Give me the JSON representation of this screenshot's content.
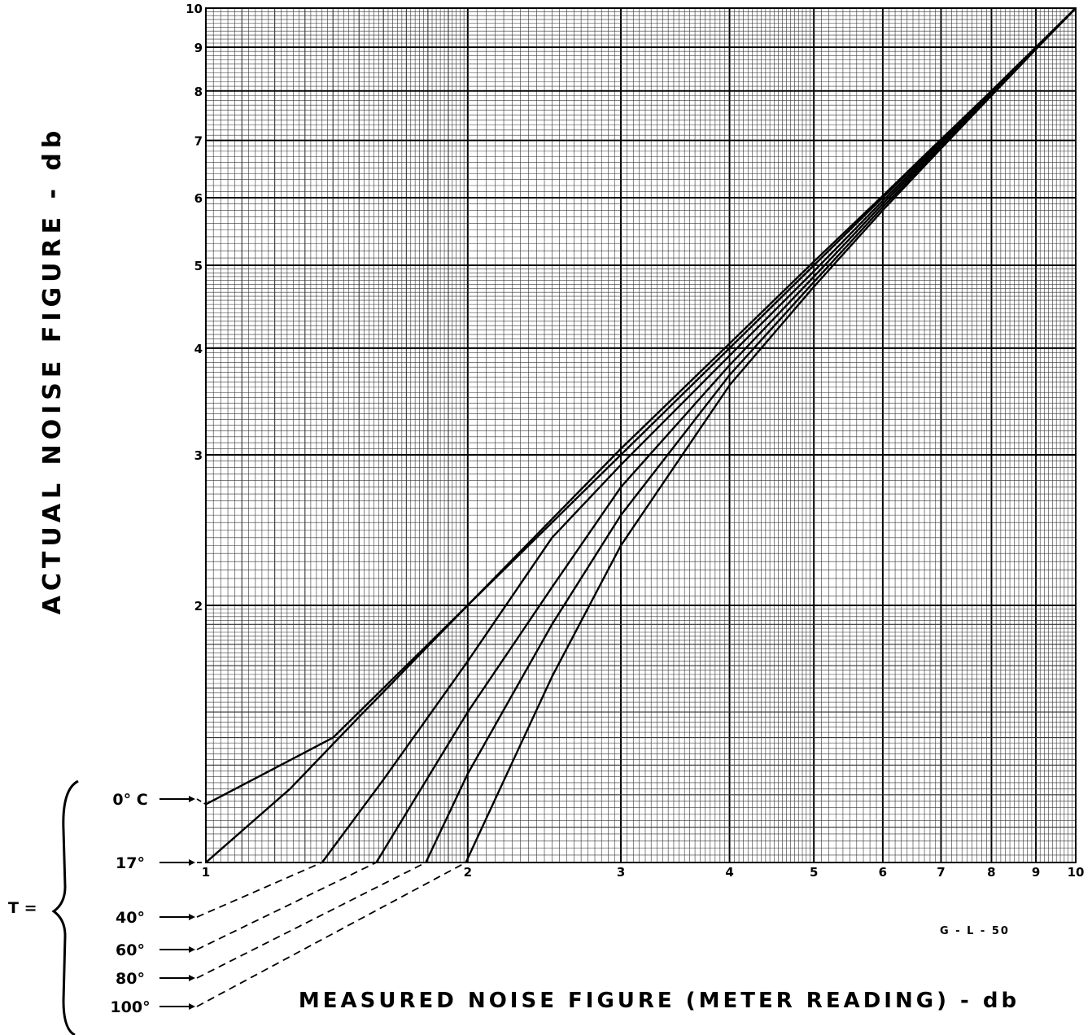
{
  "chart_data": {
    "type": "line",
    "title": "",
    "xlabel": "MEASURED  NOISE  FIGURE  (METER  READING) - db",
    "ylabel": "ACTUAL  NOISE  FIGURE - db",
    "x_scale": "log",
    "y_scale": "log",
    "xlim": [
      1,
      10
    ],
    "ylim": [
      1,
      10
    ],
    "grid": true,
    "x_ticks": [
      "1",
      "2",
      "3",
      "4",
      "5",
      "6",
      "7",
      "8",
      "9",
      "10"
    ],
    "y_ticks": [
      "2",
      "3",
      "4",
      "5",
      "6",
      "7",
      "8",
      "9",
      "10"
    ],
    "temperature_label": "T =",
    "series": [
      {
        "name": "0° C",
        "extends_below_axis": false,
        "x": [
          1,
          1.4,
          2,
          3,
          4,
          5,
          6,
          7,
          8,
          9,
          10
        ],
        "y": [
          1.17,
          1.4,
          2.0,
          3.05,
          4.05,
          5.05,
          6.03,
          7.02,
          8.0,
          9.0,
          10.0
        ]
      },
      {
        "name": "17°",
        "extends_below_axis": false,
        "x": [
          1,
          1.25,
          1.5,
          2,
          3,
          4,
          5,
          6,
          7,
          8,
          9,
          10
        ],
        "y": [
          1.0,
          1.22,
          1.48,
          2.0,
          3.0,
          4.0,
          5.0,
          6.0,
          7.0,
          8.0,
          9.0,
          10.0
        ]
      },
      {
        "name": "40°",
        "extends_below_axis": true,
        "x": [
          1.36,
          1.6,
          2,
          2.5,
          3,
          4,
          5,
          6,
          7,
          8,
          9,
          10
        ],
        "y": [
          1.0,
          1.25,
          1.72,
          2.4,
          2.92,
          3.92,
          4.92,
          5.95,
          6.96,
          7.97,
          8.98,
          10.0
        ]
      },
      {
        "name": "60°",
        "extends_below_axis": true,
        "x": [
          1.57,
          2,
          2.5,
          3,
          4,
          5,
          6,
          7,
          8,
          9,
          10
        ],
        "y": [
          1.0,
          1.5,
          2.1,
          2.75,
          3.82,
          4.85,
          5.9,
          6.92,
          7.95,
          8.97,
          10.0
        ]
      },
      {
        "name": "80°",
        "extends_below_axis": true,
        "x": [
          1.79,
          2,
          2.5,
          3,
          4,
          5,
          6,
          7,
          8,
          9,
          10
        ],
        "y": [
          1.0,
          1.27,
          1.9,
          2.55,
          3.72,
          4.78,
          5.85,
          6.88,
          7.92,
          8.96,
          10.0
        ]
      },
      {
        "name": "100°",
        "extends_below_axis": true,
        "x": [
          1.99,
          2.5,
          3,
          4,
          5,
          6,
          7,
          8,
          9,
          10
        ],
        "y": [
          1.0,
          1.65,
          2.35,
          3.62,
          4.72,
          5.8,
          6.85,
          7.9,
          8.95,
          10.0
        ]
      }
    ],
    "annotation": "G - L - 50"
  }
}
